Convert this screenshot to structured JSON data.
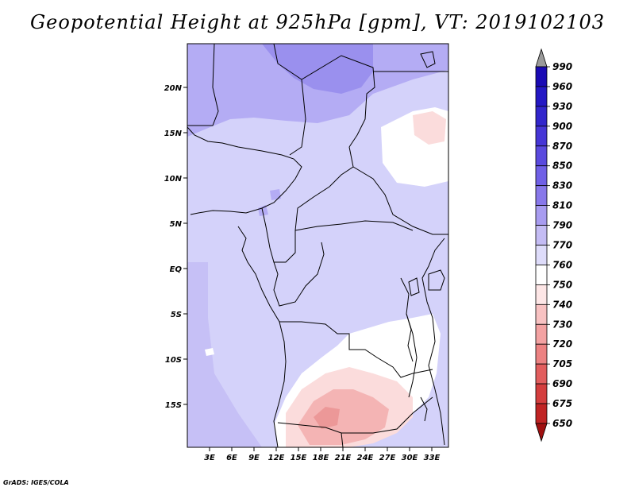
{
  "title": "Geopotential Height at 925hPa [gpm], VT: 2019102103",
  "credit": "GrADS: IGES/COLA",
  "map": {
    "lat_labels": [
      "20N",
      "15N",
      "10N",
      "5N",
      "EQ",
      "5S",
      "10S",
      "15S"
    ],
    "lon_labels": [
      "3E",
      "6E",
      "9E",
      "12E",
      "15E",
      "18E",
      "21E",
      "24E",
      "27E",
      "30E",
      "33E"
    ]
  },
  "colorbar": {
    "labels": [
      "990",
      "960",
      "930",
      "900",
      "870",
      "850",
      "830",
      "810",
      "790",
      "770",
      "760",
      "750",
      "740",
      "730",
      "720",
      "705",
      "690",
      "675",
      "650"
    ],
    "colors": [
      "#9a9a9a",
      "#1a0ab4",
      "#2418c4",
      "#3226cc",
      "#4636d6",
      "#5a4ade",
      "#7060e6",
      "#8878ea",
      "#a89cf0",
      "#c4bcf4",
      "#dedcfa",
      "#ffffff",
      "#fde6e6",
      "#f8c2c2",
      "#f3a2a2",
      "#ec8282",
      "#e25e5e",
      "#d43e3e",
      "#c02424",
      "#a01010"
    ]
  },
  "colors": {
    "blue_dark": "#9a90ee",
    "blue_mid": "#b4acf4",
    "blue_light": "#d4d2fa",
    "pink_light": "#fbdcdc",
    "pink_mid": "#f4b4b4"
  }
}
